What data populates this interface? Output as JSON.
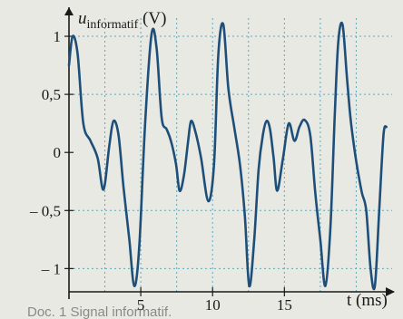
{
  "chart_data": {
    "type": "line",
    "ylabel_main": "u",
    "ylabel_sub": "informatif",
    "ylabel_unit": " (V)",
    "xlabel": "t (ms)",
    "xlim": [
      0,
      22.5
    ],
    "ylim": [
      -1.2,
      1.25
    ],
    "grid": true,
    "x_ticks": [
      5,
      10,
      15
    ],
    "x_tick_labels": [
      "5",
      "10",
      "15"
    ],
    "y_ticks": [
      1,
      0.5,
      0,
      -0.5,
      -1
    ],
    "y_tick_labels": [
      "1",
      "0,5",
      "0",
      "– 0,5",
      "– 1"
    ],
    "series": [
      {
        "color": "#1e4f78",
        "x": [
          0,
          0.25,
          0.6,
          1,
          1.5,
          2.0,
          2.4,
          2.8,
          3.1,
          3.45,
          3.8,
          4.2,
          4.55,
          4.9,
          5.3,
          5.75,
          6.1,
          6.45,
          6.8,
          7.1,
          7.45,
          7.7,
          8.0,
          8.3,
          8.5,
          8.8,
          9.2,
          9.7,
          10.1,
          10.4,
          10.75,
          11.1,
          11.5,
          11.9,
          12.25,
          12.55,
          12.9,
          13.2,
          13.5,
          13.75,
          14.0,
          14.25,
          14.5,
          14.9,
          15.3,
          15.7,
          16.05,
          16.4,
          16.8,
          17.15,
          17.5,
          17.85,
          18.2,
          18.5,
          18.75,
          19.05,
          19.35,
          19.6,
          19.85,
          20.1,
          20.4,
          20.7,
          21.0,
          21.3,
          21.6,
          21.9,
          22.1
        ],
        "y": [
          0.75,
          1.0,
          0.85,
          0.25,
          0.1,
          -0.05,
          -0.32,
          0.05,
          0.27,
          0.15,
          -0.3,
          -0.75,
          -1.15,
          -0.8,
          0.25,
          1.02,
          0.9,
          0.3,
          0.2,
          0.1,
          -0.1,
          -0.33,
          -0.2,
          0.1,
          0.27,
          0.18,
          -0.05,
          -0.42,
          -0.1,
          0.85,
          1.1,
          0.55,
          0.22,
          -0.1,
          -0.55,
          -1.15,
          -0.75,
          -0.15,
          0.15,
          0.27,
          0.2,
          -0.05,
          -0.33,
          -0.05,
          0.25,
          0.1,
          0.22,
          0.28,
          0.15,
          -0.35,
          -0.75,
          -1.15,
          -0.65,
          0.3,
          0.95,
          1.1,
          0.65,
          0.3,
          0.05,
          -0.15,
          -0.35,
          -0.5,
          -1.0,
          -1.15,
          -0.5,
          0.15,
          0.22
        ]
      }
    ]
  },
  "caption": "Doc. 1   Signal informatif."
}
